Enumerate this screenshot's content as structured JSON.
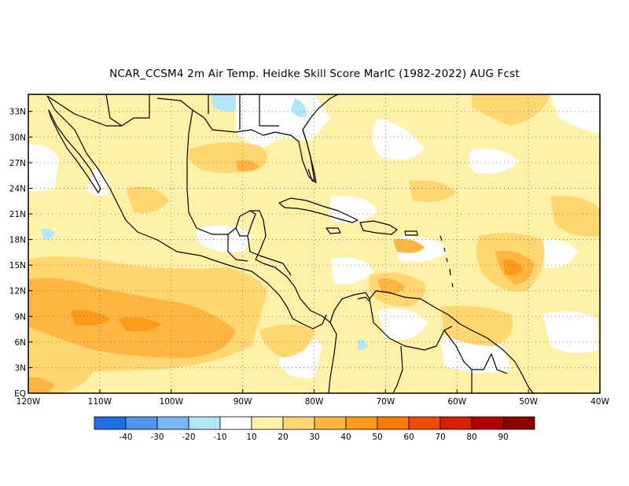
{
  "title": "NCAR_CCSM4  2m Air Temp. Heidke Skill Score MarIC (1982-2022) AUG Fcst",
  "map": {
    "lat_labels": [
      "33N",
      "30N",
      "27N",
      "24N",
      "21N",
      "18N",
      "15N",
      "12N",
      "9N",
      "6N",
      "3N",
      "EQ"
    ],
    "lon_labels": [
      "120W",
      "110W",
      "100W",
      "90W",
      "80W",
      "70W",
      "60W",
      "50W",
      "40W"
    ],
    "lat_range": [
      0,
      35
    ],
    "lon_range": [
      -120,
      -40
    ],
    "grid": "dotted"
  },
  "colorbar": {
    "labels": [
      "-40",
      "-30",
      "-20",
      "-10",
      "10",
      "20",
      "30",
      "40",
      "50",
      "60",
      "70",
      "80",
      "90"
    ],
    "colors": [
      "#1f6fe0",
      "#4e94ef",
      "#7db6f6",
      "#b2e6fb",
      "#ffffff",
      "#fff2a8",
      "#ffd66f",
      "#ffb640",
      "#ff9a1a",
      "#ff7a00",
      "#f24a00",
      "#d81f00",
      "#b40000",
      "#8c0000"
    ]
  },
  "colors": {
    "land_outline": "#000000",
    "low_positive": "#fff2a8",
    "mid_positive": "#ffd66f",
    "high_positive": "#ffb640",
    "peak_positive": "#ff9a1a",
    "weak_negative": "#b2e6fb"
  }
}
